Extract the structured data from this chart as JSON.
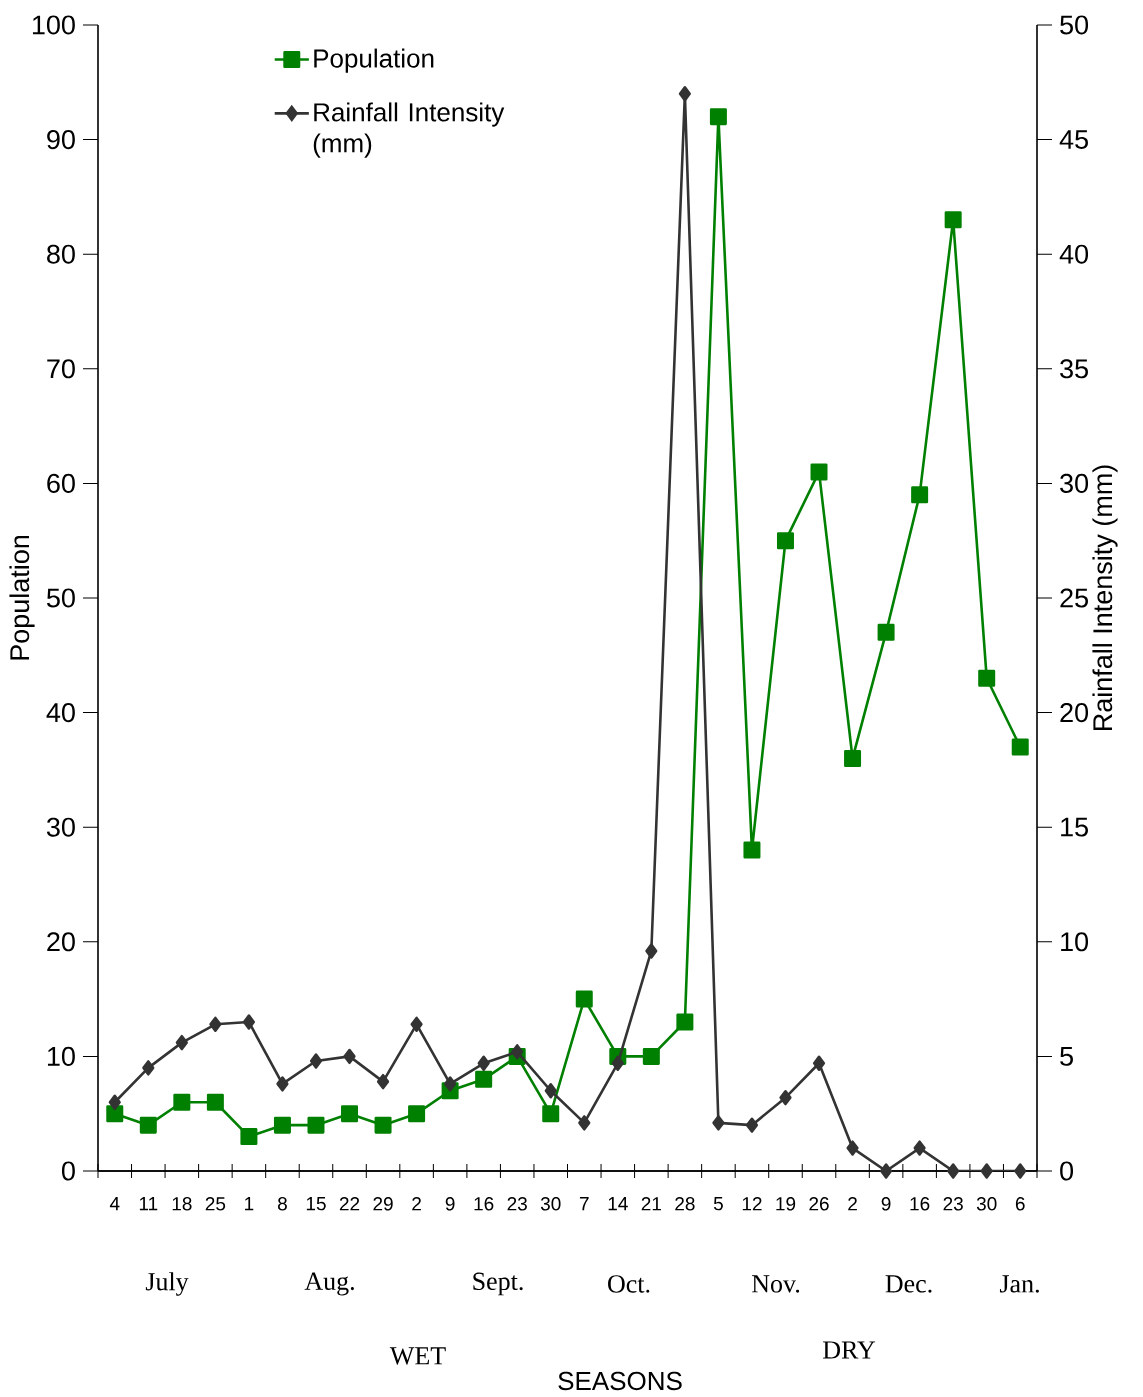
{
  "chart_data": {
    "type": "line",
    "categories": [
      "4",
      "11",
      "18",
      "25",
      "1",
      "8",
      "15",
      "22",
      "29",
      "2",
      "9",
      "16",
      "23",
      "30",
      "7",
      "14",
      "21",
      "28",
      "5",
      "12",
      "19",
      "26",
      "2",
      "9",
      "16",
      "23",
      "30",
      "6"
    ],
    "ylabel": "Population",
    "y2label": "Rainfall Intensity (mm)",
    "ylim": [
      0,
      100
    ],
    "yticks": [
      0,
      10,
      20,
      30,
      40,
      50,
      60,
      70,
      80,
      90,
      100
    ],
    "y2lim": [
      0,
      50
    ],
    "y2ticks": [
      0,
      5,
      10,
      15,
      20,
      25,
      30,
      35,
      40,
      45,
      50
    ],
    "legend": "top left",
    "annotations": [
      "July",
      "Aug.",
      "Sept.",
      "Oct.",
      "Nov.",
      "Dec.",
      "Jan.",
      "WET",
      "DRY",
      "SEASONS"
    ],
    "series": [
      {
        "name": "Population",
        "color": "#008000",
        "marker": "square",
        "values": [
          5,
          4,
          6,
          6,
          3,
          4,
          4,
          5,
          4,
          5,
          7,
          8,
          10,
          5,
          15,
          10,
          10,
          13,
          92,
          28,
          55,
          61,
          36,
          47,
          59,
          83,
          43,
          37
        ]
      },
      {
        "name": "Rainfall Intensity (mm)",
        "color": "#333333",
        "marker": "diamond",
        "axis": "y2",
        "values": [
          3.0,
          4.5,
          5.6,
          6.4,
          6.5,
          3.8,
          4.8,
          5.0,
          3.9,
          6.4,
          3.8,
          4.7,
          5.2,
          3.5,
          2.1,
          4.7,
          9.6,
          47.0,
          2.1,
          2.0,
          3.2,
          4.7,
          1.0,
          0,
          1.0,
          0,
          0,
          0
        ]
      }
    ]
  }
}
